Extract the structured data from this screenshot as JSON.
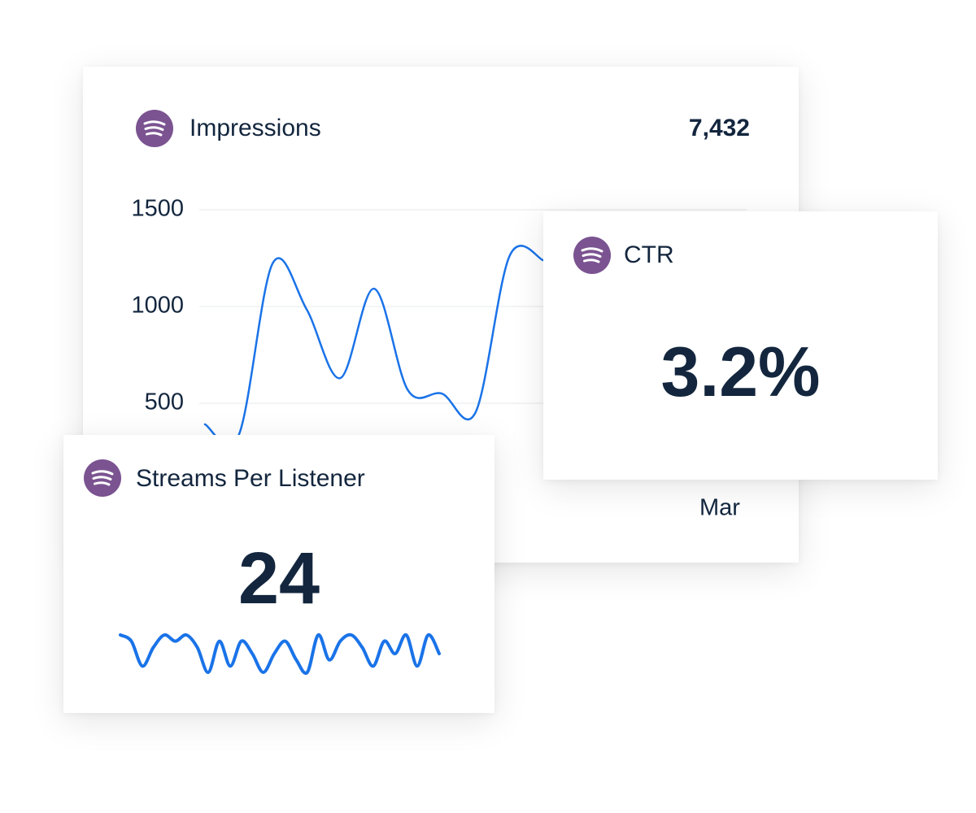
{
  "cards": [
    {
      "title": "Impressions",
      "total": "7,432",
      "chart": {
        "type": "line",
        "color": "#1a73e8",
        "values": [
          391,
          336,
          1223,
          987,
          630,
          1092,
          567,
          550,
          454,
          1260,
          1239
        ],
        "ylim": [
          300,
          1500
        ],
        "yticks": [
          500,
          1000,
          1500
        ],
        "grid": true,
        "x_labels": [
          "Mar"
        ]
      }
    },
    {
      "title": "CTR",
      "value": "3.2%"
    },
    {
      "title": "Streams Per Listener",
      "value": "24",
      "sparkline": {
        "type": "line",
        "color": "#1a73e8",
        "values": [
          6,
          5,
          1,
          4,
          6,
          5,
          6,
          4,
          0,
          5,
          1,
          5,
          3,
          0,
          3,
          5,
          2,
          0,
          6,
          2,
          5,
          6,
          4,
          1,
          5,
          3,
          6,
          1,
          6,
          3
        ]
      }
    }
  ]
}
